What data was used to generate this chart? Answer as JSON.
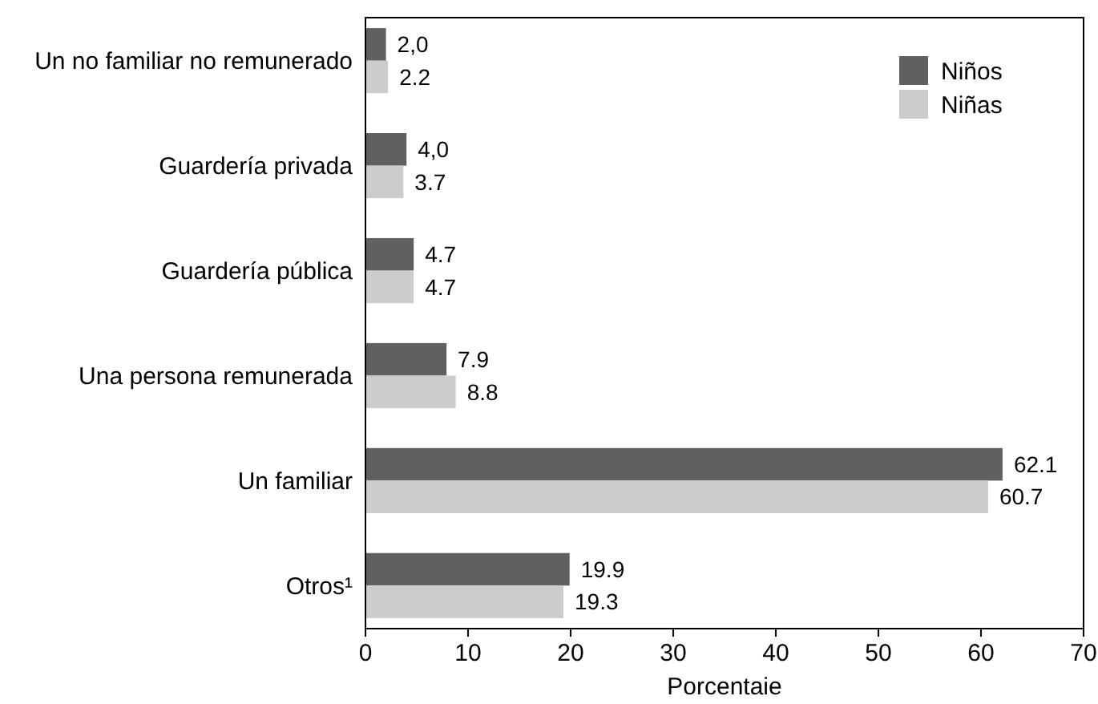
{
  "chart_data": {
    "type": "bar",
    "orientation": "horizontal",
    "xlabel": "Porcentaie",
    "categories": [
      "Un no familiar no remunerado",
      "Guardería privada",
      "Guardería pública",
      "Una persona remunerada",
      "Un familiar",
      "Otros¹"
    ],
    "series": [
      {
        "name": "Niños",
        "color": "#606060",
        "values": [
          2.0,
          4.0,
          4.7,
          7.9,
          62.1,
          19.9
        ],
        "value_labels": [
          "2,0",
          "4,0",
          "4.7",
          "7.9",
          "62.1",
          "19.9"
        ]
      },
      {
        "name": "Niñas",
        "color": "#cccccc",
        "values": [
          2.2,
          3.7,
          4.7,
          8.8,
          60.7,
          19.3
        ],
        "value_labels": [
          "2.2",
          "3.7",
          "4.7",
          "8.8",
          "60.7",
          "19.3"
        ]
      }
    ],
    "xlim": [
      0,
      70
    ],
    "xticks": [
      0,
      10,
      20,
      30,
      40,
      50,
      60,
      70
    ],
    "legend": "top right",
    "grid": false
  }
}
